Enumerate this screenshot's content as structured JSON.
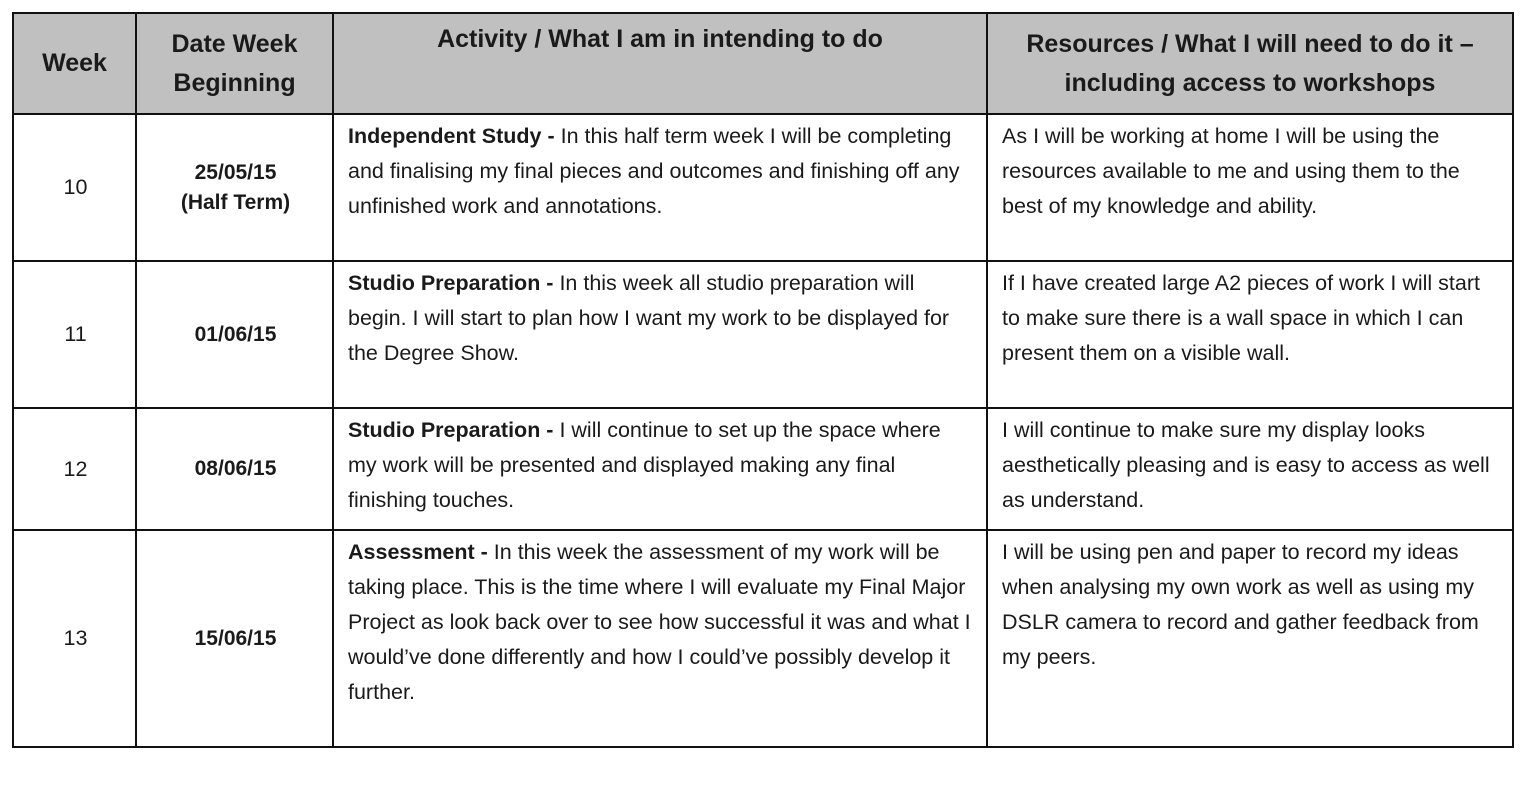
{
  "headers": [
    "Week",
    "Date Week Beginning",
    "Activity / What I am in intending to do",
    "Resources / What I will need to do it – including access to workshops"
  ],
  "rows": [
    {
      "week": "10",
      "date": "25/05/15",
      "date_note": "(Half Term)",
      "activity_title": "Independent Study -",
      "activity": " In this half term week I will be completing and finalising my final pieces and outcomes and finishing off any unfinished work and annotations.",
      "resources": "As I will be working at home I will be using the resources available to me and using them to the best of my knowledge and ability."
    },
    {
      "week": "11",
      "date": "01/06/15",
      "date_note": "",
      "activity_title": "Studio Preparation -",
      "activity": " In this week all studio preparation will begin. I will start to plan how I want my work to be displayed for the Degree Show.",
      "resources": "If I have created large A2 pieces of work I will start to make sure there is a wall space in which I can present them on a visible wall."
    },
    {
      "week": "12",
      "date": "08/06/15",
      "date_note": "",
      "activity_title": "Studio Preparation -",
      "activity": " I will continue to set up the space where my work will be presented and displayed making any final finishing touches.",
      "resources": "I will continue to make sure my display looks aesthetically pleasing and is easy to access as well as understand."
    },
    {
      "week": "13",
      "date": "15/06/15",
      "date_note": "",
      "activity_title": "Assessment -",
      "activity": " In this week the assessment of my work will be taking place. This is the time where I will evaluate my Final Major Project as look back over to see how successful it was and what I would’ve done differently and how I could’ve possibly develop it further.",
      "resources": "I will be using pen and paper to record my ideas when analysing my own work as well as using my DSLR camera to record and gather feedback from my peers."
    }
  ],
  "colors": {
    "header_bg": "#c0c0c0",
    "border": "#111111"
  }
}
